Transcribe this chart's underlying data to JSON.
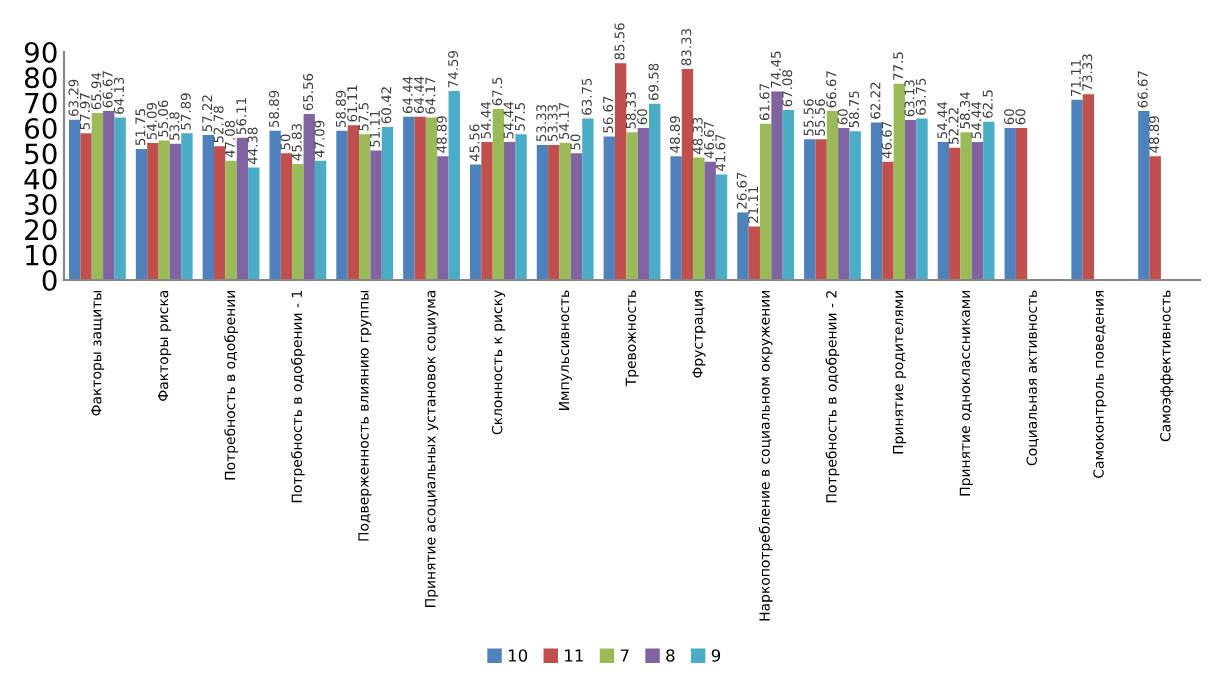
{
  "chart_data": {
    "type": "bar",
    "categories": [
      "Факторы защиты",
      "Факторы риска",
      "Потребность в одобрении",
      "Потребность в одобрении - 1",
      "Подверженность влиянию группы",
      "Принятие асоциальных установок социума",
      "Склонность к риску",
      "Импульсивность",
      "Тревожность",
      "Фрустрация",
      "Наркопотребление в социальном окружении",
      "Потребность в одобрении - 2",
      "Принятие родителями",
      "Принятие одноклассниками",
      "Социальная активность",
      "Самоконтроль поведения",
      "Самоэффективность"
    ],
    "series": [
      {
        "name": "10",
        "color": "#4f81bd",
        "values": [
          63.29,
          51.75,
          57.22,
          58.89,
          58.89,
          64.44,
          45.56,
          53.33,
          56.67,
          48.89,
          26.67,
          55.56,
          62.22,
          54.44,
          60,
          71.11,
          66.67
        ]
      },
      {
        "name": "11",
        "color": "#c0504d",
        "values": [
          57.97,
          54.09,
          52.78,
          50,
          61.11,
          64.44,
          54.44,
          53.33,
          85.56,
          83.33,
          21.11,
          55.56,
          46.67,
          52.22,
          60,
          73.33,
          48.89
        ]
      },
      {
        "name": "7",
        "color": "#9bbb59",
        "values": [
          65.94,
          55.06,
          47.08,
          45.83,
          57.5,
          64.17,
          67.5,
          54.17,
          58.33,
          48.33,
          61.67,
          66.67,
          77.5,
          58.34,
          null,
          null,
          null
        ]
      },
      {
        "name": "8",
        "color": "#8064a2",
        "values": [
          66.67,
          53.8,
          56.11,
          65.56,
          51.11,
          48.89,
          54.44,
          50,
          60,
          46.67,
          74.45,
          60,
          63.13,
          54.44,
          null,
          null,
          null
        ]
      },
      {
        "name": "9",
        "color": "#4bacc6",
        "values": [
          64.13,
          57.89,
          44.38,
          47.09,
          60.42,
          74.59,
          57.5,
          63.75,
          69.58,
          41.67,
          67.08,
          58.75,
          63.75,
          62.5,
          null,
          null,
          null
        ]
      }
    ],
    "ylim": [
      0,
      90
    ],
    "yticks": [
      0,
      10,
      20,
      30,
      40,
      50,
      60,
      70,
      80,
      90
    ],
    "grid": false,
    "legend": "bottom",
    "data_labels": true
  }
}
